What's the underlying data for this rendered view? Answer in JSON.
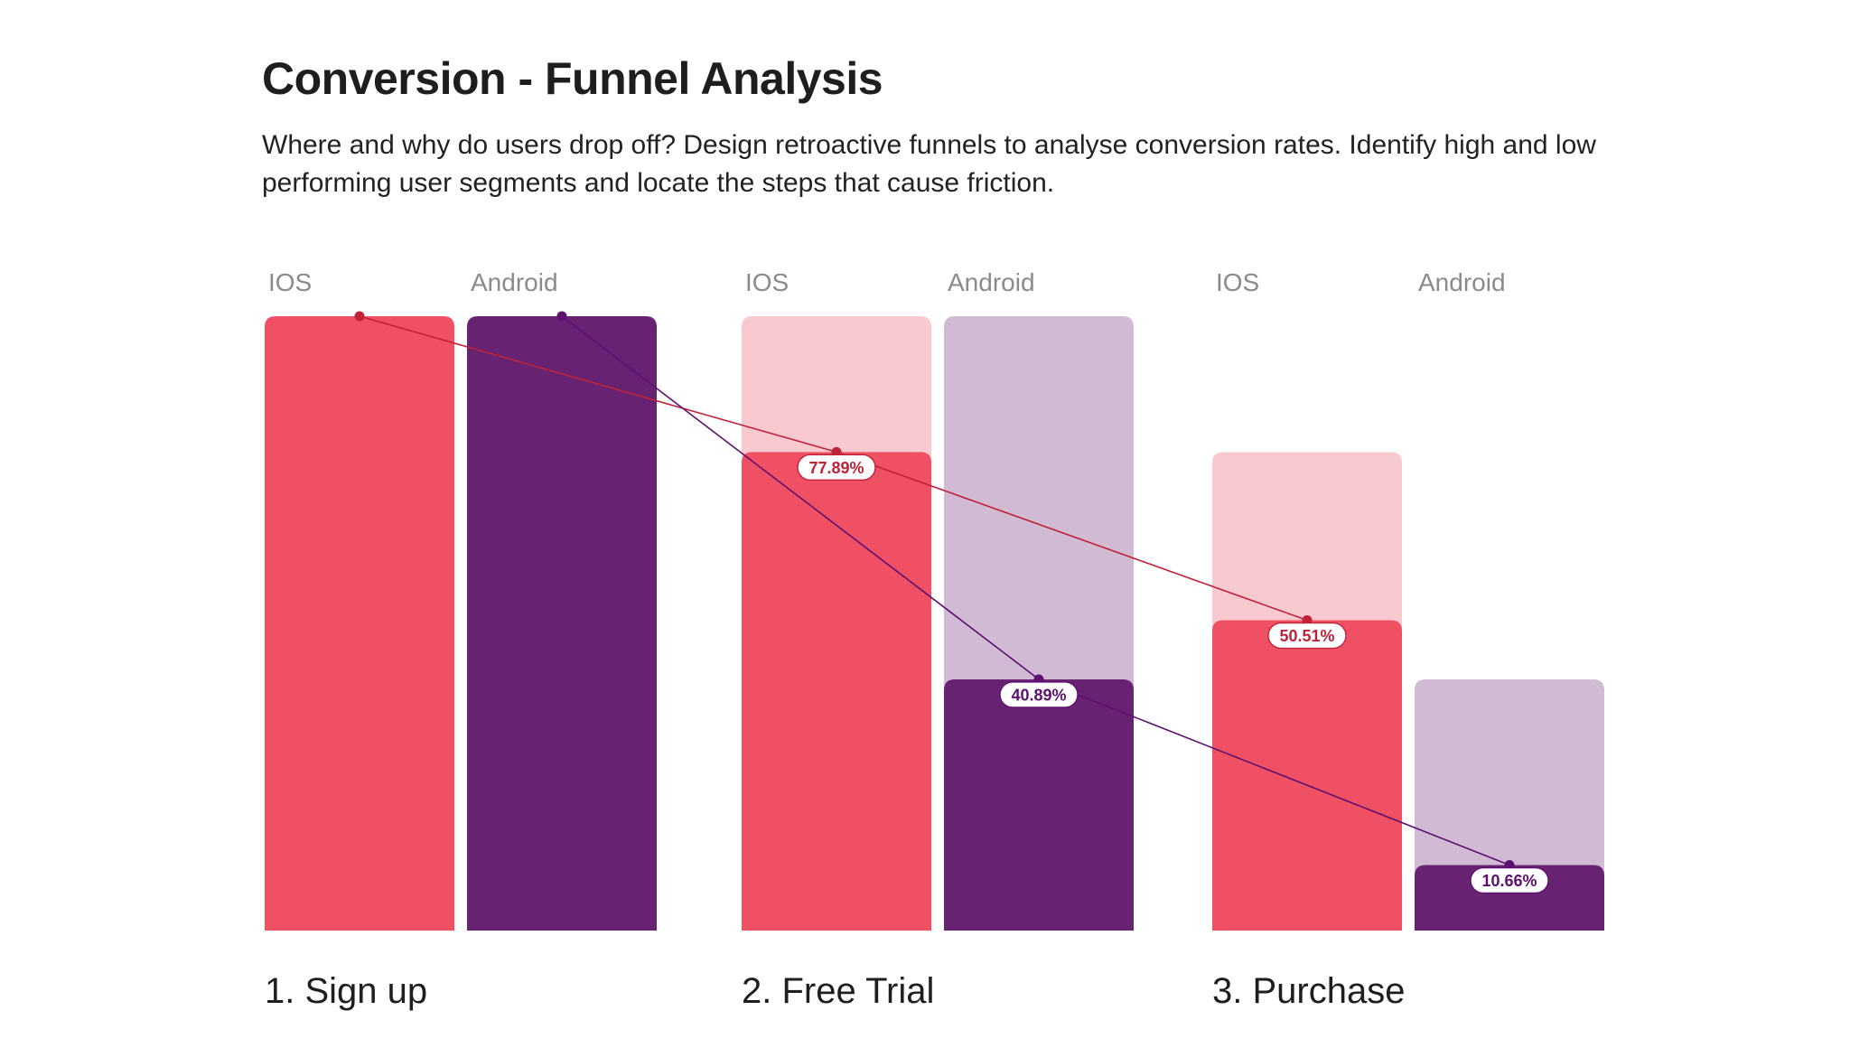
{
  "title": "Conversion - Funnel Analysis",
  "subtitle": "Where and why do users drop off? Design retroactive funnels to analyse conversion rates. Identify high and low performing user segments and locate the steps that cause friction.",
  "chart_data": {
    "type": "bar",
    "categories": [
      "1. Sign up",
      "2. Free Trial",
      "3. Purchase"
    ],
    "series": [
      {
        "name": "IOS",
        "values": [
          100,
          77.89,
          50.51
        ],
        "previous_step": [
          null,
          100,
          77.89
        ],
        "value_labels": [
          "",
          "77.89%",
          "50.51%"
        ],
        "color": "#ef5064",
        "light_color": "#f9c9d0",
        "line_color": "#c0223a"
      },
      {
        "name": "Android",
        "values": [
          100,
          40.89,
          10.66
        ],
        "previous_step": [
          null,
          100,
          40.89
        ],
        "value_labels": [
          "",
          "40.89%",
          "10.66%"
        ],
        "color": "#672371",
        "light_color": "#d1bbd4",
        "line_color": "#5e1070"
      }
    ],
    "ylim": [
      0,
      100
    ],
    "grid": false,
    "legend": "above each bar"
  }
}
